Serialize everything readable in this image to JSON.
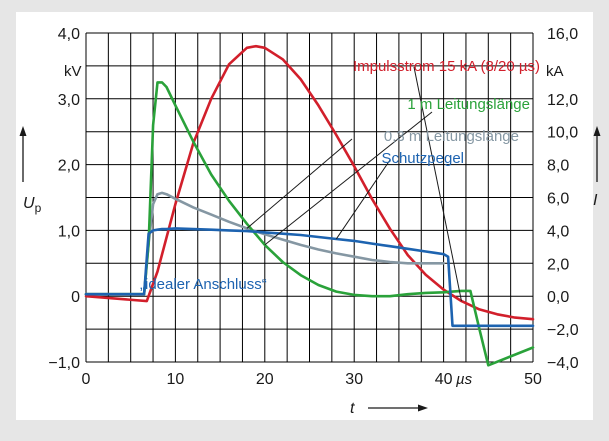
{
  "chart_data": {
    "type": "line",
    "x_axis": {
      "range": [
        0,
        50
      ],
      "ticks": [
        0,
        10,
        20,
        30,
        40,
        50
      ],
      "tick_labels": [
        "0",
        "10",
        "20",
        "30",
        "40",
        "50"
      ],
      "unit": "µs",
      "label": "t"
    },
    "y_axis_left": {
      "range": [
        -1.0,
        4.0
      ],
      "ticks": [
        -1.0,
        0,
        1.0,
        2.0,
        3.0,
        4.0
      ],
      "tick_labels": [
        "−1,0",
        "0",
        "1,0",
        "2,0",
        "3,0",
        "4,0"
      ],
      "unit": "kV",
      "label": "U",
      "label_sub": "p"
    },
    "y_axis_right": {
      "range": [
        -4.0,
        16.0
      ],
      "ticks": [
        -4.0,
        -2.0,
        0.0,
        2.0,
        4.0,
        6.0,
        8.0,
        10.0,
        12.0,
        16.0
      ],
      "tick_labels": [
        "−4,0",
        "−2,0",
        "0,0",
        "2,0",
        "4,0",
        "6,0",
        "8,0",
        "10,0",
        "12,0",
        "16,0"
      ],
      "unit": "kA",
      "label": "I"
    },
    "grid": true,
    "series": [
      {
        "name": "Impulsstrom 15 kA (8/20 µs)",
        "color": "#d21f2b",
        "axis": "right",
        "x": [
          0,
          6.8,
          8,
          10,
          12,
          14,
          16,
          18,
          19,
          20,
          22,
          24,
          26,
          28,
          30,
          32,
          34,
          36,
          38,
          40,
          42,
          44,
          46,
          48,
          50
        ],
        "y": [
          0,
          -0.3,
          1.5,
          5.6,
          9.3,
          12.0,
          14.1,
          15.1,
          15.2,
          15.1,
          14.4,
          13.2,
          11.6,
          9.8,
          7.9,
          5.9,
          4.1,
          2.5,
          1.3,
          0.4,
          -0.3,
          -0.8,
          -1.1,
          -1.3,
          -1.4
        ]
      },
      {
        "name": "1 m Leitungslänge",
        "color": "#2aa23a",
        "axis": "left",
        "x": [
          0,
          6.5,
          7.0,
          7.5,
          8.0,
          8.5,
          9.0,
          10,
          12,
          14,
          16,
          18,
          20,
          22,
          24,
          26,
          28,
          30,
          32,
          34,
          36,
          38,
          40,
          41,
          42,
          43,
          44,
          45,
          50
        ],
        "y": [
          0.03,
          0.03,
          0.8,
          2.6,
          3.25,
          3.25,
          3.18,
          2.9,
          2.35,
          1.85,
          1.45,
          1.1,
          0.78,
          0.52,
          0.32,
          0.17,
          0.07,
          0.02,
          0.0,
          0.0,
          0.03,
          0.05,
          0.06,
          0.07,
          0.08,
          0.08,
          -0.5,
          -1.05,
          -0.78
        ]
      },
      {
        "name": "0,3 m Leitungslänge",
        "color": "#8597a3",
        "axis": "left",
        "x": [
          0,
          6.5,
          7.0,
          7.5,
          8.0,
          8.5,
          9.0,
          10,
          12,
          14,
          16,
          18,
          20,
          22,
          24,
          26,
          28,
          30,
          32,
          34,
          36,
          38,
          40
        ],
        "y": [
          0.03,
          0.03,
          0.8,
          1.4,
          1.55,
          1.57,
          1.55,
          1.48,
          1.35,
          1.24,
          1.13,
          1.03,
          0.94,
          0.86,
          0.78,
          0.71,
          0.65,
          0.6,
          0.55,
          0.52,
          0.5,
          0.5,
          0.5
        ]
      },
      {
        "name": "Schutzpegel",
        "color": "#1d63b0",
        "axis": "left",
        "x": [
          0,
          6.5,
          7.0,
          7.5,
          8.0,
          8.5,
          9.0,
          10,
          12,
          14,
          16,
          18,
          20,
          22,
          24,
          26,
          28,
          30,
          32,
          34,
          36,
          38,
          39,
          40,
          40.5,
          41,
          42,
          44,
          46,
          48,
          50
        ],
        "y": [
          0.03,
          0.03,
          0.95,
          1.0,
          1.01,
          1.02,
          1.02,
          1.03,
          1.02,
          1.01,
          1.0,
          0.99,
          0.97,
          0.95,
          0.93,
          0.9,
          0.87,
          0.84,
          0.8,
          0.76,
          0.72,
          0.68,
          0.66,
          0.64,
          0.6,
          -0.45,
          -0.45,
          -0.45,
          -0.45,
          -0.45,
          -0.45
        ]
      }
    ],
    "annotations": [
      {
        "text": "„idealer Anschluss“",
        "color": "#1d63b0"
      }
    ]
  },
  "colors": {
    "background": "#e6e6e6",
    "plot_background": "#ffffff",
    "grid": "#000000",
    "text": "#1a1a1a"
  }
}
